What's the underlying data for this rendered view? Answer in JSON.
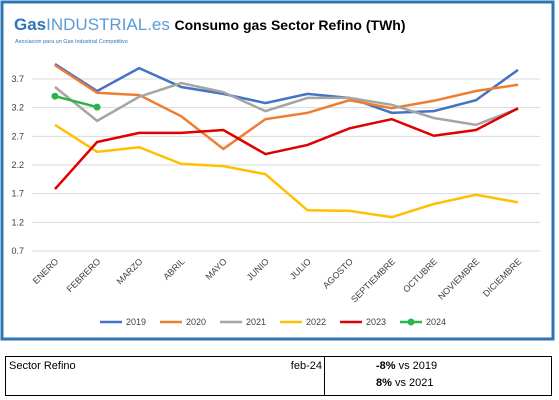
{
  "chart_data": {
    "type": "line",
    "title": "Consumo gas Sector Refino (TWh)",
    "logo": {
      "brand_a": "Gas",
      "brand_b": "INDUSTRIAL.es",
      "tagline": "Asociacion para un Gas Industrial Competitivo"
    },
    "categories": [
      "ENERO",
      "FEBRERO",
      "MARZO",
      "ABRIL",
      "MAYO",
      "JUNIO",
      "JULIO",
      "AGOSTO",
      "SEPTIEMBRE",
      "OCTUBRE",
      "NOVIEMBRE",
      "DICIEMBRE"
    ],
    "series": [
      {
        "name": "2019",
        "color": "#4472c4",
        "values": [
          3.96,
          3.49,
          3.89,
          3.56,
          3.44,
          3.28,
          3.44,
          3.37,
          3.11,
          3.14,
          3.33,
          3.86
        ]
      },
      {
        "name": "2020",
        "color": "#ed7d31",
        "values": [
          3.94,
          3.46,
          3.42,
          3.05,
          2.48,
          3.0,
          3.11,
          3.33,
          3.19,
          3.32,
          3.49,
          3.6
        ]
      },
      {
        "name": "2021",
        "color": "#a5a5a5",
        "values": [
          3.56,
          2.97,
          3.39,
          3.63,
          3.47,
          3.14,
          3.37,
          3.37,
          3.25,
          3.02,
          2.9,
          3.18
        ]
      },
      {
        "name": "2022",
        "color": "#ffc000",
        "values": [
          2.9,
          2.43,
          2.51,
          2.22,
          2.18,
          2.04,
          1.41,
          1.4,
          1.29,
          1.52,
          1.68,
          1.55
        ]
      },
      {
        "name": "2023",
        "color": "#e00000",
        "values": [
          1.78,
          2.6,
          2.76,
          2.76,
          2.81,
          2.39,
          2.55,
          2.84,
          3.0,
          2.71,
          2.81,
          3.19
        ]
      },
      {
        "name": "2024",
        "color": "#2db34a",
        "markers": true,
        "values": [
          3.4,
          3.21,
          null,
          null,
          null,
          null,
          null,
          null,
          null,
          null,
          null,
          null
        ]
      }
    ],
    "ylim": [
      0.7,
      4.0
    ],
    "yticks": [
      0.7,
      1.2,
      1.7,
      2.2,
      2.7,
      3.2,
      3.7
    ],
    "grid": true,
    "legend": "bottom"
  },
  "summary": {
    "label": "Sector Refino",
    "period": "feb-24",
    "rows": [
      {
        "value": "-8%",
        "text": "vs 2019"
      },
      {
        "value": "8%",
        "text": "vs 2021"
      }
    ]
  }
}
